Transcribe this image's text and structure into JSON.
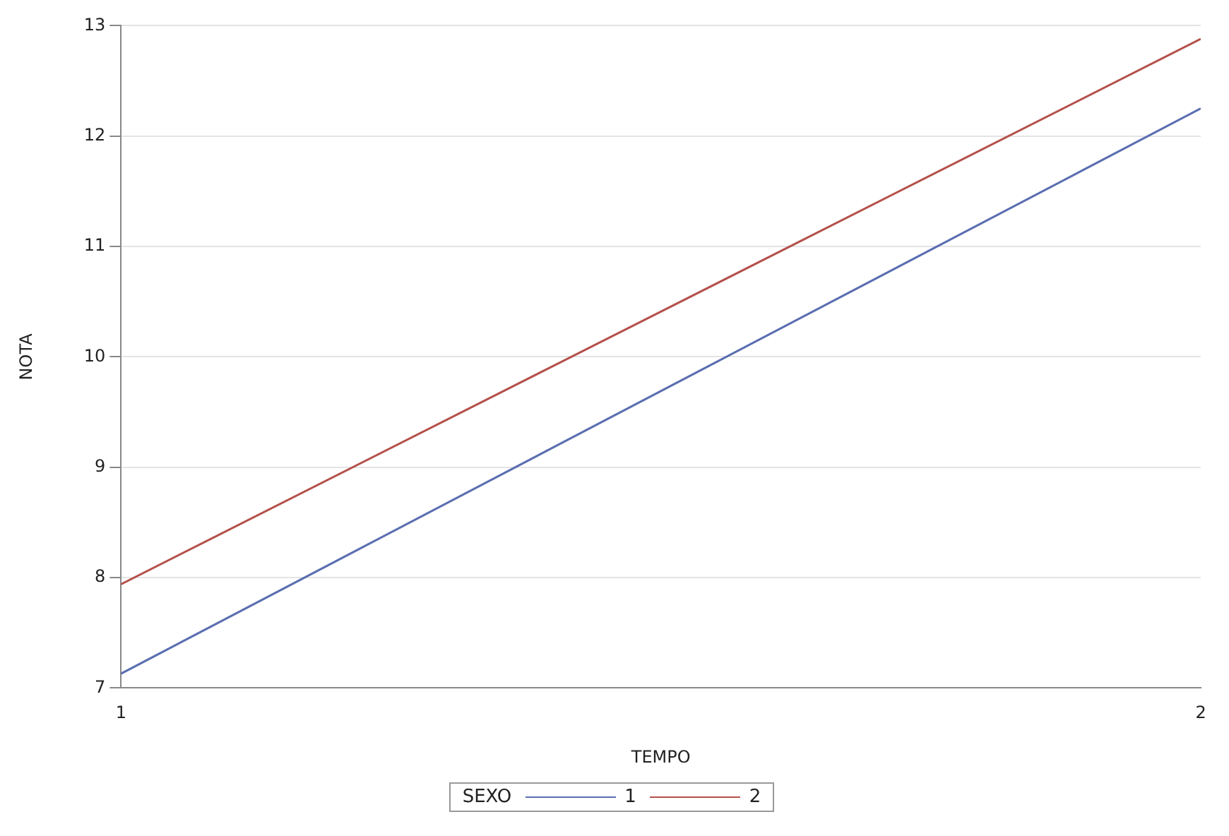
{
  "chart_data": {
    "type": "line",
    "xlabel": "TEMPO",
    "ylabel": "NOTA",
    "legend_title": "SEXO",
    "x": [
      1,
      2
    ],
    "series": [
      {
        "name": "1",
        "color": "#5a6eb0",
        "values": [
          7.13,
          12.25
        ]
      },
      {
        "name": "2",
        "color": "#b4504a",
        "values": [
          7.94,
          12.88
        ]
      }
    ],
    "xlim": [
      1,
      2
    ],
    "xticks": [
      1,
      2
    ],
    "ylim": [
      7,
      13
    ],
    "yticks": [
      7,
      8,
      9,
      10,
      11,
      12,
      13
    ],
    "grid": "y",
    "legend": "bottom",
    "marker": "none",
    "line_style": "solid"
  }
}
